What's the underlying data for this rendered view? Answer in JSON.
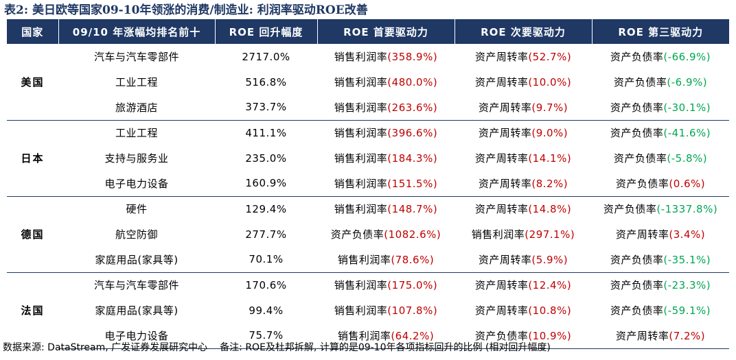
{
  "title": "表2:  美日欧等国家09-10年领涨的消费/制造业:  利润率驱动ROE改善",
  "headers": [
    "国家",
    "09/10 年涨幅均排名前十",
    "ROE 回升幅度",
    "ROE 首要驱动力",
    "ROE 次要驱动力",
    "ROE 第三驱动力"
  ],
  "colors": {
    "header_bg": "#1F3864",
    "header_text": "#FFFFFF",
    "value_red": "#C00000",
    "value_green": "#00A651"
  },
  "groups": [
    {
      "country": "美国",
      "rows": [
        {
          "industry": "汽车与汽车零部件",
          "roe": "2717.0%",
          "d1_label": "销售利润率",
          "d1_value": "(358.9%)",
          "d2_label": "资产周转率",
          "d2_value": "(52.7%)",
          "d3_label": "资产负债率",
          "d3_value": "(-66.9%)"
        },
        {
          "industry": "工业工程",
          "roe": "516.8%",
          "d1_label": "销售利润率",
          "d1_value": "(480.0%)",
          "d2_label": "资产周转率",
          "d2_value": "(10.0%)",
          "d3_label": "资产负债率",
          "d3_value": "(-6.9%)"
        },
        {
          "industry": "旅游酒店",
          "roe": "373.7%",
          "d1_label": "销售利润率",
          "d1_value": "(263.6%)",
          "d2_label": "资产周转率",
          "d2_value": "(9.7%)",
          "d3_label": "资产负债率",
          "d3_value": "(-30.1%)"
        }
      ]
    },
    {
      "country": "日本",
      "rows": [
        {
          "industry": "工业工程",
          "roe": "411.1%",
          "d1_label": "销售利润率",
          "d1_value": "(396.6%)",
          "d2_label": "资产周转率",
          "d2_value": "(9.0%)",
          "d3_label": "资产负债率",
          "d3_value": "(-41.6%)"
        },
        {
          "industry": "支持与服务业",
          "roe": "235.0%",
          "d1_label": "销售利润率",
          "d1_value": "(184.3%)",
          "d2_label": "资产周转率",
          "d2_value": "(14.1%)",
          "d3_label": "资产负债率",
          "d3_value": "(-5.8%)"
        },
        {
          "industry": "电子电力设备",
          "roe": "160.9%",
          "d1_label": "销售利润率",
          "d1_value": "(151.5%)",
          "d2_label": "资产周转率",
          "d2_value": "(8.2%)",
          "d3_label": "资产负债率",
          "d3_value": "(0.6%)"
        }
      ]
    },
    {
      "country": "德国",
      "rows": [
        {
          "industry": "硬件",
          "roe": "129.4%",
          "d1_label": "销售利润率",
          "d1_value": "(148.7%)",
          "d2_label": "资产周转率",
          "d2_value": "(14.8%)",
          "d3_label": "资产负债率",
          "d3_value": "(-1337.8%)"
        },
        {
          "industry": "航空防御",
          "roe": "277.7%",
          "d1_label": "资产负债率",
          "d1_value": "(1082.6%)",
          "d2_label": "销售利润率",
          "d2_value": "(297.1%)",
          "d3_label": "资产周转率",
          "d3_value": "(3.4%)"
        },
        {
          "industry": "家庭用品(家具等)",
          "roe": "70.1%",
          "d1_label": "销售利润率",
          "d1_value": "(78.6%)",
          "d2_label": "资产周转率",
          "d2_value": "(5.9%)",
          "d3_label": "资产负债率",
          "d3_value": "(-35.1%)"
        }
      ]
    },
    {
      "country": "法国",
      "rows": [
        {
          "industry": "汽车与汽车零部件",
          "roe": "170.6%",
          "d1_label": "销售利润率",
          "d1_value": "(175.0%)",
          "d2_label": "资产周转率",
          "d2_value": "(12.4%)",
          "d3_label": "资产负债率",
          "d3_value": "(-23.3%)"
        },
        {
          "industry": "家庭用品(家具等)",
          "roe": "99.4%",
          "d1_label": "销售利润率",
          "d1_value": "(107.8%)",
          "d2_label": "资产周转率",
          "d2_value": "(10.8%)",
          "d3_label": "资产负债率",
          "d3_value": "(-59.1%)"
        },
        {
          "industry": "电子电力设备",
          "roe": "75.7%",
          "d1_label": "销售利润率",
          "d1_value": "(64.2%)",
          "d2_label": "资产负债率",
          "d2_value": "(10.9%)",
          "d3_label": "资产周转率",
          "d3_value": "(7.2%)"
        }
      ]
    }
  ],
  "footer": {
    "source": "数据来源: DataStream, 广发证券发展研究中心",
    "note": "备注: ROE及杜邦拆解, 计算的是09-10年各项指标回升的比例 (相对回升幅度)"
  }
}
